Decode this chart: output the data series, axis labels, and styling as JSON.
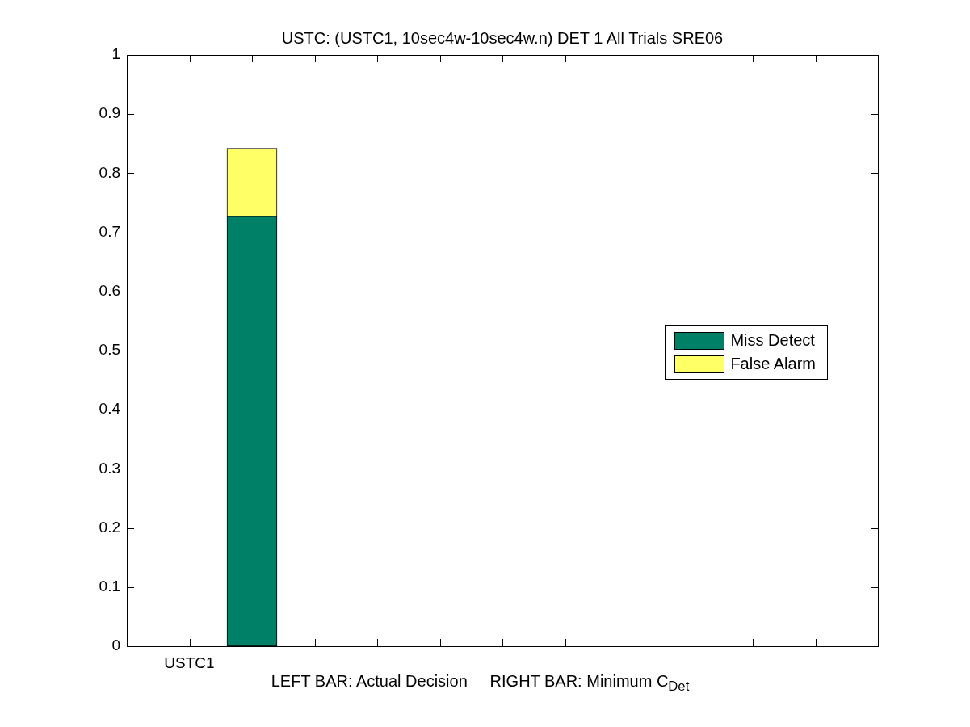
{
  "chart_data": {
    "type": "bar",
    "title": "USTC: (USTC1, 10sec4w-10sec4w.n) DET 1 All Trials SRE06",
    "xlabel": "LEFT BAR: Actual Decision     RIGHT BAR: Minimum C$_{Det}$",
    "categories": [
      null,
      "USTC1",
      null,
      null,
      null,
      null,
      null,
      null,
      null,
      null,
      null,
      null,
      null
    ],
    "series": [
      {
        "name": "Miss Detect",
        "color": "#008066",
        "values": [
          null,
          null,
          0.727,
          null,
          null,
          null,
          null,
          null,
          null,
          null,
          null,
          null,
          null
        ]
      },
      {
        "name": "False Alarm",
        "color": "#ffff66",
        "values": [
          null,
          null,
          0.115,
          null,
          null,
          null,
          null,
          null,
          null,
          null,
          null,
          null,
          null
        ]
      }
    ],
    "stacked": true,
    "legend": "right",
    "ylim": [
      0,
      1
    ],
    "yticks": [
      0,
      0.1,
      0.2,
      0.3,
      0.4,
      0.5,
      0.6,
      0.7,
      0.8,
      0.9,
      1
    ]
  }
}
